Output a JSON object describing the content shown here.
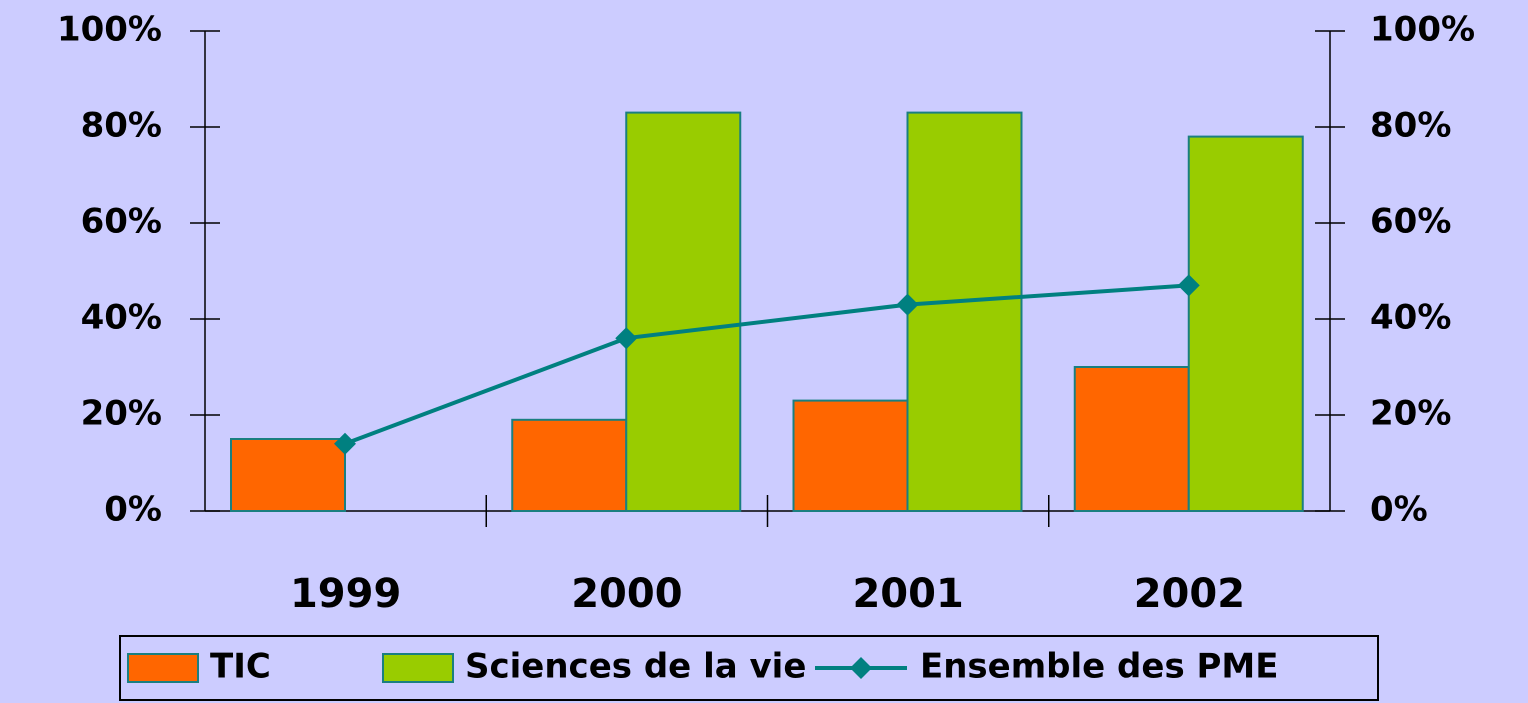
{
  "chart_data": {
    "type": "bar",
    "categories": [
      "1999",
      "2000",
      "2001",
      "2002"
    ],
    "series": [
      {
        "name": "TIC",
        "type": "bar",
        "color": "#ff6600",
        "values": [
          15,
          19,
          23,
          30
        ]
      },
      {
        "name": "Sciences de la vie",
        "type": "bar",
        "color": "#99cc00",
        "values": [
          null,
          83,
          83,
          78
        ]
      },
      {
        "name": "Ensemble des PME",
        "type": "line",
        "color": "#008080",
        "axis": "y2",
        "values": [
          14,
          36,
          43,
          47
        ]
      }
    ],
    "ylim": [
      0,
      100
    ],
    "yticks": [
      {
        "value": 0,
        "label": "0%"
      },
      {
        "value": 20,
        "label": "20%"
      },
      {
        "value": 40,
        "label": "40%"
      },
      {
        "value": 60,
        "label": "60%"
      },
      {
        "value": 80,
        "label": "80%"
      },
      {
        "value": 100,
        "label": "100%"
      }
    ],
    "y2lim": [
      0,
      100
    ],
    "y2ticks": [
      {
        "value": 0,
        "label": "0%"
      },
      {
        "value": 20,
        "label": "20%"
      },
      {
        "value": 40,
        "label": "40%"
      },
      {
        "value": 60,
        "label": "60%"
      },
      {
        "value": 80,
        "label": "80%"
      },
      {
        "value": 100,
        "label": "100%"
      }
    ],
    "legend": "bottom"
  }
}
